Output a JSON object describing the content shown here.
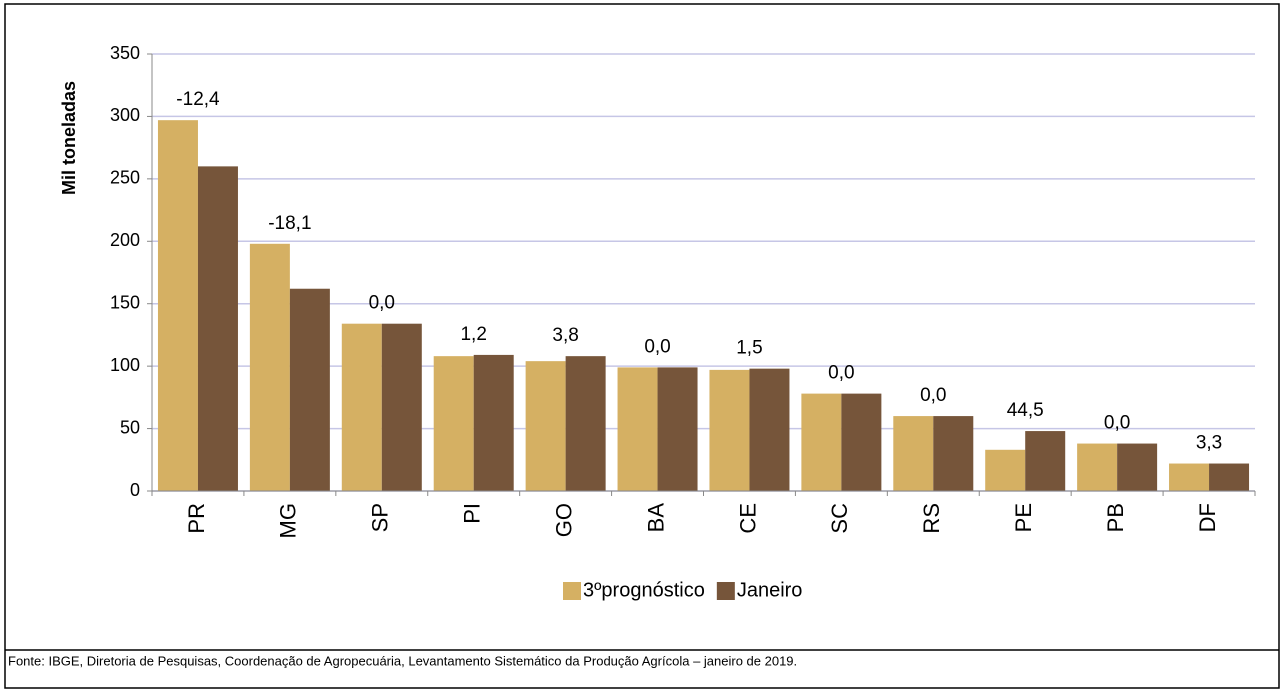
{
  "chart_data": {
    "type": "bar",
    "y_label": "Mil toneladas",
    "categories": [
      "PR",
      "MG",
      "SP",
      "PI",
      "GO",
      "BA",
      "CE",
      "SC",
      "RS",
      "PE",
      "PB",
      "DF"
    ],
    "series": [
      {
        "name": "3ºprognóstico",
        "color": "#d5b063",
        "values": [
          297,
          198,
          134,
          108,
          104,
          99,
          97,
          78,
          60,
          33,
          38,
          22
        ]
      },
      {
        "name": "Janeiro",
        "color": "#76553a",
        "values": [
          260,
          162,
          134,
          109,
          108,
          99,
          98,
          78,
          60,
          48,
          38,
          22
        ]
      }
    ],
    "change": {
      "values": [
        -12.4,
        -18.1,
        0.0,
        1.2,
        3.8,
        0.0,
        1.5,
        0.0,
        0.0,
        44.5,
        0.0,
        3.3
      ],
      "value_labels": [
        "-12,4",
        "-18,1",
        "0,0",
        "1,2",
        "3,8",
        "0,0",
        "1,5",
        "0,0",
        "0,0",
        "44,5",
        "0,0",
        "3,3"
      ]
    },
    "ylim": [
      0,
      350
    ],
    "yticks": [
      0,
      50,
      100,
      150,
      200,
      250,
      300,
      350
    ],
    "grid": true,
    "legend": "bottom",
    "source": "Fonte: IBGE, Diretoria de Pesquisas, Coordenação de Agropecuária, Levantamento Sistemático da Produção Agrícola – janeiro de 2019."
  }
}
